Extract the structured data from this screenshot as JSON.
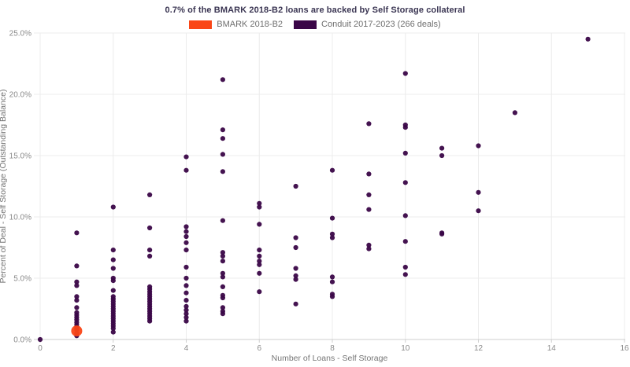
{
  "title": "0.7% of the BMARK 2018-B2 loans are backed by Self Storage collateral",
  "colors": {
    "bmark_orange": "#fa4616",
    "conduit_purple": "#3a0647",
    "gridline": "#ececec",
    "axis_line": "#cfcfcf",
    "tick_text": "#8a8a8a",
    "title_text": "#3b3653"
  },
  "legend": [
    {
      "label": "BMARK 2018-B2",
      "color": "#fa4616"
    },
    {
      "label": "Conduit 2017-2023 (266 deals)",
      "color": "#3a0647"
    }
  ],
  "chart_data": {
    "type": "scatter",
    "title": "0.7% of the BMARK 2018-B2 loans are backed by Self Storage collateral",
    "xlabel": "Number of Loans - Self Storage",
    "ylabel": "Percent of Deal - Self Storage (Outstanding Balance)",
    "xlim": [
      0,
      16
    ],
    "ylim": [
      0,
      25
    ],
    "x_ticks": [
      0,
      2,
      4,
      6,
      8,
      10,
      12,
      14,
      16
    ],
    "x_tick_labels": [
      "0",
      "2",
      "4",
      "6",
      "8",
      "10",
      "12",
      "14",
      "16"
    ],
    "y_ticks": [
      0,
      5,
      10,
      15,
      20,
      25
    ],
    "y_tick_labels": [
      "0.0%",
      "5.0%",
      "10.0%",
      "15.0%",
      "20.0%",
      "25.0%"
    ],
    "grid": true,
    "legend_position": "top-center",
    "series": [
      {
        "name": "Conduit 2017-2023 (266 deals)",
        "color": "#3a0647",
        "marker_size": 3.1,
        "points": [
          [
            0,
            0.0
          ],
          [
            1,
            8.7
          ],
          [
            1,
            6.0
          ],
          [
            1,
            4.7
          ],
          [
            1,
            4.4
          ],
          [
            1,
            3.5
          ],
          [
            1,
            3.2
          ],
          [
            1,
            2.6
          ],
          [
            1,
            2.2
          ],
          [
            1,
            2.0
          ],
          [
            1,
            1.8
          ],
          [
            1,
            1.6
          ],
          [
            1,
            1.4
          ],
          [
            1,
            1.2
          ],
          [
            1,
            1.0
          ],
          [
            1,
            0.8
          ],
          [
            1,
            0.5
          ],
          [
            1,
            0.3
          ],
          [
            2,
            10.8
          ],
          [
            2,
            7.3
          ],
          [
            2,
            6.5
          ],
          [
            2,
            5.8
          ],
          [
            2,
            5.0
          ],
          [
            2,
            4.8
          ],
          [
            2,
            4.0
          ],
          [
            2,
            3.5
          ],
          [
            2,
            3.3
          ],
          [
            2,
            3.1
          ],
          [
            2,
            2.9
          ],
          [
            2,
            2.7
          ],
          [
            2,
            2.5
          ],
          [
            2,
            2.3
          ],
          [
            2,
            2.1
          ],
          [
            2,
            1.9
          ],
          [
            2,
            1.7
          ],
          [
            2,
            1.5
          ],
          [
            2,
            1.3
          ],
          [
            2,
            1.1
          ],
          [
            2,
            0.9
          ],
          [
            2,
            0.6
          ],
          [
            3,
            11.8
          ],
          [
            3,
            9.1
          ],
          [
            3,
            7.3
          ],
          [
            3,
            6.8
          ],
          [
            3,
            4.3
          ],
          [
            3,
            4.1
          ],
          [
            3,
            3.9
          ],
          [
            3,
            3.7
          ],
          [
            3,
            3.5
          ],
          [
            3,
            3.3
          ],
          [
            3,
            3.1
          ],
          [
            3,
            2.9
          ],
          [
            3,
            2.7
          ],
          [
            3,
            2.5
          ],
          [
            3,
            2.3
          ],
          [
            3,
            2.1
          ],
          [
            3,
            1.9
          ],
          [
            3,
            1.7
          ],
          [
            3,
            1.5
          ],
          [
            4,
            14.9
          ],
          [
            4,
            13.8
          ],
          [
            4,
            9.2
          ],
          [
            4,
            8.8
          ],
          [
            4,
            8.4
          ],
          [
            4,
            7.9
          ],
          [
            4,
            7.3
          ],
          [
            4,
            5.9
          ],
          [
            4,
            5.0
          ],
          [
            4,
            4.4
          ],
          [
            4,
            3.8
          ],
          [
            4,
            3.2
          ],
          [
            4,
            2.7
          ],
          [
            4,
            2.4
          ],
          [
            4,
            2.1
          ],
          [
            4,
            1.8
          ],
          [
            4,
            1.5
          ],
          [
            5,
            21.2
          ],
          [
            5,
            17.1
          ],
          [
            5,
            16.4
          ],
          [
            5,
            15.1
          ],
          [
            5,
            13.7
          ],
          [
            5,
            9.7
          ],
          [
            5,
            7.1
          ],
          [
            5,
            6.8
          ],
          [
            5,
            6.4
          ],
          [
            5,
            5.4
          ],
          [
            5,
            5.1
          ],
          [
            5,
            4.3
          ],
          [
            5,
            3.6
          ],
          [
            5,
            3.4
          ],
          [
            5,
            2.6
          ],
          [
            5,
            2.3
          ],
          [
            5,
            2.1
          ],
          [
            6,
            11.1
          ],
          [
            6,
            10.8
          ],
          [
            6,
            9.4
          ],
          [
            6,
            7.3
          ],
          [
            6,
            6.8
          ],
          [
            6,
            6.4
          ],
          [
            6,
            6.1
          ],
          [
            6,
            5.4
          ],
          [
            6,
            3.9
          ],
          [
            7,
            12.5
          ],
          [
            7,
            8.3
          ],
          [
            7,
            7.5
          ],
          [
            7,
            5.8
          ],
          [
            7,
            5.2
          ],
          [
            7,
            4.9
          ],
          [
            7,
            2.9
          ],
          [
            8,
            13.8
          ],
          [
            8,
            9.9
          ],
          [
            8,
            8.6
          ],
          [
            8,
            8.3
          ],
          [
            8,
            5.1
          ],
          [
            8,
            4.7
          ],
          [
            8,
            3.7
          ],
          [
            8,
            3.5
          ],
          [
            9,
            17.6
          ],
          [
            9,
            13.5
          ],
          [
            9,
            11.8
          ],
          [
            9,
            10.6
          ],
          [
            9,
            7.7
          ],
          [
            9,
            7.4
          ],
          [
            10,
            21.7
          ],
          [
            10,
            17.5
          ],
          [
            10,
            17.3
          ],
          [
            10,
            15.2
          ],
          [
            10,
            12.8
          ],
          [
            10,
            10.1
          ],
          [
            10,
            8.0
          ],
          [
            10,
            5.9
          ],
          [
            10,
            5.3
          ],
          [
            11,
            15.6
          ],
          [
            11,
            15.0
          ],
          [
            11,
            8.7
          ],
          [
            11,
            8.6
          ],
          [
            12,
            15.8
          ],
          [
            12,
            12.0
          ],
          [
            12,
            10.5
          ],
          [
            13,
            18.5
          ],
          [
            15,
            24.5
          ]
        ]
      },
      {
        "name": "BMARK 2018-B2",
        "color": "#fa4616",
        "marker_size": 7,
        "points": [
          [
            1,
            0.7
          ]
        ]
      }
    ]
  }
}
